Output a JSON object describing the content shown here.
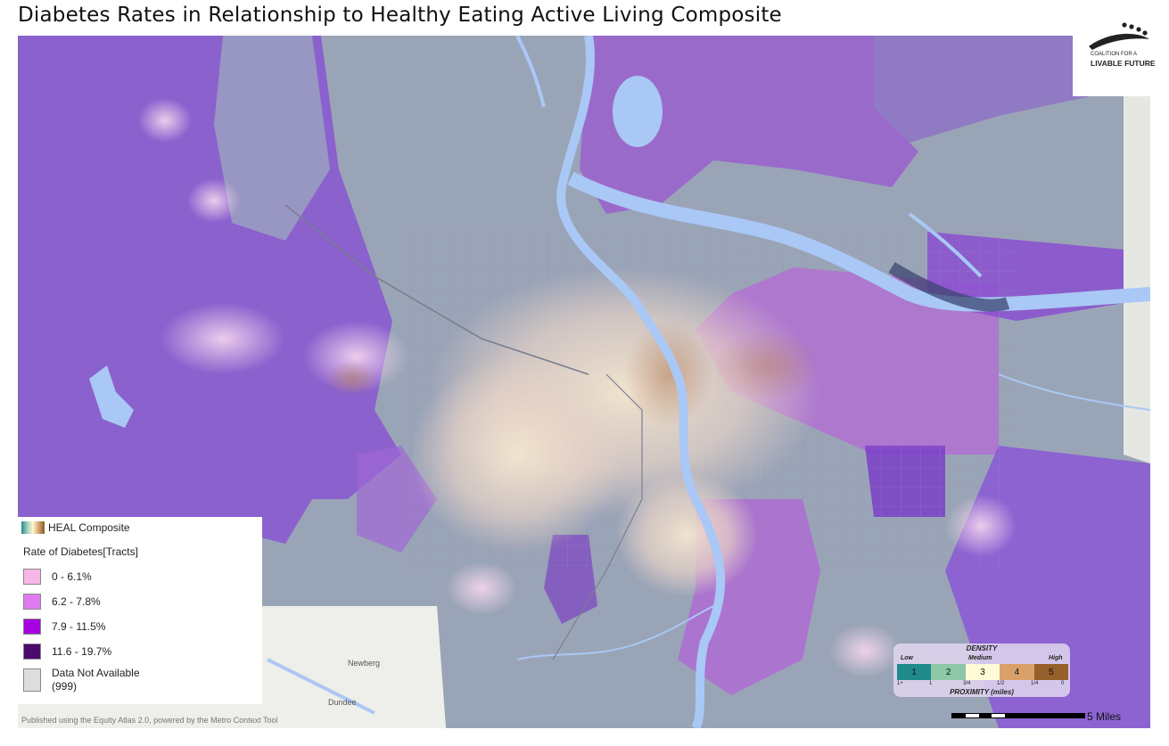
{
  "title": "Diabetes Rates in Relationship to Healthy Eating Active Living Composite",
  "logo": {
    "line_small": "COALITION FOR A",
    "line_big": "LIVABLE FUTURE"
  },
  "legend": {
    "heal_label": "HEAL Composite",
    "rate_title": "Rate of Diabetes[Tracts]",
    "items": [
      {
        "label": "0 - 6.1%",
        "color": "#f7b6e8"
      },
      {
        "label": "6.2 - 7.8%",
        "color": "#e07af0"
      },
      {
        "label": "7.9 - 11.5%",
        "color": "#a600e0"
      },
      {
        "label": "11.6 - 19.7%",
        "color": "#4b0a6e"
      },
      {
        "label": "Data Not Available\n(999)",
        "color": "#dddddd"
      }
    ]
  },
  "density": {
    "title": "DENSITY",
    "low": "Low",
    "medium": "Medium",
    "high": "High",
    "cells": [
      {
        "label": "1",
        "color": "#1f8a8a"
      },
      {
        "label": "2",
        "color": "#8cc7a8"
      },
      {
        "label": "3",
        "color": "#fffbd6"
      },
      {
        "label": "4",
        "color": "#d9a06a"
      },
      {
        "label": "5",
        "color": "#96602a"
      }
    ],
    "proximity_ticks": [
      "1+",
      "1",
      "3/4",
      "1/2",
      "1/4",
      "0"
    ],
    "proximity_label": "PROXIMITY (miles)"
  },
  "scale_label": "5 Miles",
  "published": "Published using the Equity Atlas 2.0, powered by the Metro Context Tool",
  "place_labels": [
    "Newberg",
    "Dundee"
  ],
  "colors": {
    "water": "#a9c8f5",
    "base_gray": "#9aa3b5",
    "purple": "#8e5fd0"
  }
}
